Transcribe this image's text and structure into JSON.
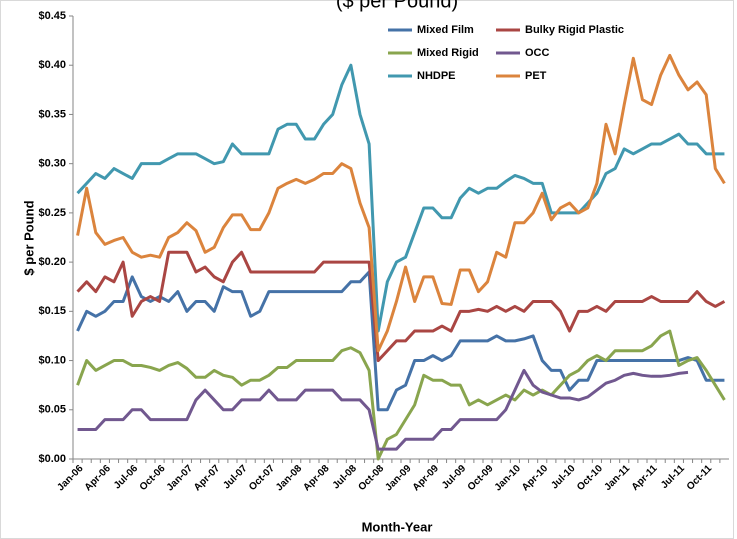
{
  "chart_data": {
    "type": "line",
    "title": "($ per Pound)",
    "y_label": "$ per Pound",
    "x_label": "Month-Year",
    "categories": [
      "Jan-06",
      null,
      null,
      "Apr-06",
      null,
      null,
      "Jul-06",
      null,
      null,
      "Oct-06",
      null,
      null,
      "Jan-07",
      null,
      null,
      "Apr-07",
      null,
      null,
      "Jul-07",
      null,
      null,
      "Oct-07",
      null,
      null,
      "Jan-08",
      null,
      null,
      "Apr-08",
      null,
      null,
      "Jul-08",
      null,
      null,
      "Oct-08",
      null,
      null,
      "Jan-09",
      null,
      null,
      "Apr-09",
      null,
      null,
      "Jul-09",
      null,
      null,
      "Oct-09",
      null,
      null,
      "Jan-10",
      null,
      null,
      "Apr-10",
      null,
      null,
      "Jul-10",
      null,
      null,
      "Oct-10",
      null,
      null,
      "Jan-11",
      null,
      null,
      "Apr-11",
      null,
      null,
      "Jul-11",
      null,
      null,
      "Oct-11",
      null,
      null
    ],
    "series": [
      {
        "name": "Mixed Film",
        "color": "#4572a7",
        "values": [
          0.13,
          0.15,
          0.145,
          0.15,
          0.16,
          0.16,
          0.185,
          0.165,
          0.16,
          0.165,
          0.16,
          0.17,
          0.15,
          0.16,
          0.16,
          0.15,
          0.175,
          0.17,
          0.17,
          0.145,
          0.15,
          0.17,
          0.17,
          0.17,
          0.17,
          0.17,
          0.17,
          0.17,
          0.17,
          0.17,
          0.18,
          0.18,
          0.19,
          0.05,
          0.05,
          0.07,
          0.075,
          0.1,
          0.1,
          0.105,
          0.1,
          0.105,
          0.12,
          0.12,
          0.12,
          0.12,
          0.125,
          0.12,
          0.12,
          0.122,
          0.125,
          0.1,
          0.09,
          0.09,
          0.07,
          0.08,
          0.08,
          0.1,
          0.1,
          0.1,
          0.1,
          0.1,
          0.1,
          0.1,
          0.1,
          0.1,
          0.1,
          0.103,
          0.1,
          0.08,
          0.08,
          0.08
        ]
      },
      {
        "name": "Bulky Rigid Plastic",
        "color": "#aa4643",
        "values": [
          0.17,
          0.18,
          0.17,
          0.185,
          0.18,
          0.2,
          0.145,
          0.16,
          0.165,
          0.16,
          0.21,
          0.21,
          0.21,
          0.19,
          0.195,
          0.185,
          0.18,
          0.2,
          0.21,
          0.19,
          0.19,
          0.19,
          0.19,
          0.19,
          0.19,
          0.19,
          0.19,
          0.2,
          0.2,
          0.2,
          0.2,
          0.2,
          0.2,
          0.1,
          0.11,
          0.12,
          0.12,
          0.13,
          0.13,
          0.13,
          0.135,
          0.13,
          0.15,
          0.15,
          0.152,
          0.15,
          0.155,
          0.15,
          0.155,
          0.15,
          0.16,
          0.16,
          0.16,
          0.15,
          0.13,
          0.15,
          0.15,
          0.155,
          0.15,
          0.16,
          0.16,
          0.16,
          0.16,
          0.165,
          0.16,
          0.16,
          0.16,
          0.16,
          0.17,
          0.16,
          0.155,
          0.16
        ]
      },
      {
        "name": "Mixed Rigid",
        "color": "#89a54e",
        "values": [
          0.075,
          0.1,
          0.09,
          0.095,
          0.1,
          0.1,
          0.095,
          0.095,
          0.093,
          0.09,
          0.095,
          0.098,
          0.092,
          0.083,
          0.083,
          0.09,
          0.085,
          0.083,
          0.075,
          0.08,
          0.08,
          0.085,
          0.093,
          0.093,
          0.1,
          0.1,
          0.1,
          0.1,
          0.1,
          0.11,
          0.113,
          0.108,
          0.09,
          0.0,
          0.02,
          0.025,
          0.04,
          0.055,
          0.085,
          0.08,
          0.08,
          0.075,
          0.075,
          0.055,
          0.06,
          0.055,
          0.06,
          0.065,
          0.06,
          0.07,
          0.065,
          0.07,
          0.065,
          0.075,
          0.085,
          0.09,
          0.1,
          0.105,
          0.1,
          0.11,
          0.11,
          0.11,
          0.11,
          0.115,
          0.125,
          0.13,
          0.095,
          0.1,
          0.103,
          0.09,
          0.075,
          0.06
        ]
      },
      {
        "name": "OCC",
        "color": "#71588f",
        "values": [
          0.03,
          0.03,
          0.03,
          0.04,
          0.04,
          0.04,
          0.05,
          0.05,
          0.04,
          0.04,
          0.04,
          0.04,
          0.04,
          0.06,
          0.07,
          0.06,
          0.05,
          0.05,
          0.06,
          0.06,
          0.06,
          0.07,
          0.06,
          0.06,
          0.06,
          0.07,
          0.07,
          0.07,
          0.07,
          0.06,
          0.06,
          0.06,
          0.05,
          0.01,
          0.01,
          0.01,
          0.02,
          0.02,
          0.02,
          0.02,
          0.03,
          0.03,
          0.04,
          0.04,
          0.04,
          0.04,
          0.04,
          0.05,
          0.07,
          0.09,
          0.075,
          0.068,
          0.065,
          0.062,
          0.062,
          0.06,
          0.063,
          0.07,
          0.077,
          0.08,
          0.085,
          0.087,
          0.085,
          0.084,
          0.084,
          0.085,
          0.087,
          0.088,
          null,
          null,
          null,
          null
        ]
      },
      {
        "name": "NHDPE",
        "color": "#4198af",
        "values": [
          0.27,
          0.28,
          0.29,
          0.285,
          0.295,
          0.29,
          0.285,
          0.3,
          0.3,
          0.3,
          0.305,
          0.31,
          0.31,
          0.31,
          0.305,
          0.3,
          0.302,
          0.32,
          0.31,
          0.31,
          0.31,
          0.31,
          0.335,
          0.34,
          0.34,
          0.325,
          0.325,
          0.34,
          0.35,
          0.38,
          0.4,
          0.35,
          0.32,
          0.13,
          0.18,
          0.2,
          0.205,
          0.23,
          0.255,
          0.255,
          0.245,
          0.245,
          0.265,
          0.275,
          0.27,
          0.275,
          0.275,
          0.282,
          0.288,
          0.285,
          0.28,
          0.28,
          0.25,
          0.25,
          0.25,
          0.25,
          0.26,
          0.27,
          0.29,
          0.295,
          0.315,
          0.31,
          0.315,
          0.32,
          0.32,
          0.325,
          0.33,
          0.32,
          0.32,
          0.31,
          0.31,
          0.31
        ]
      },
      {
        "name": "PET",
        "color": "#db843d",
        "values": [
          0.227,
          0.275,
          0.23,
          0.218,
          0.222,
          0.225,
          0.21,
          0.205,
          0.207,
          0.205,
          0.225,
          0.23,
          0.24,
          0.232,
          0.21,
          0.215,
          0.235,
          0.248,
          0.248,
          0.233,
          0.233,
          0.25,
          0.275,
          0.28,
          0.284,
          0.28,
          0.284,
          0.29,
          0.29,
          0.3,
          0.295,
          0.26,
          0.235,
          0.11,
          0.13,
          0.16,
          0.195,
          0.16,
          0.185,
          0.185,
          0.158,
          0.157,
          0.192,
          0.192,
          0.17,
          0.18,
          0.21,
          0.205,
          0.24,
          0.24,
          0.25,
          0.27,
          0.243,
          0.255,
          0.26,
          0.25,
          0.255,
          0.28,
          0.34,
          0.31,
          0.36,
          0.407,
          0.365,
          0.36,
          0.39,
          0.41,
          0.39,
          0.375,
          0.383,
          0.37,
          0.295,
          0.28
        ]
      }
    ],
    "ylim": [
      0,
      0.45
    ],
    "yticks": [
      {
        "value": 0,
        "label": "$0.00"
      },
      {
        "value": 0.05,
        "label": "$0.05"
      },
      {
        "value": 0.1,
        "label": "$0.10"
      },
      {
        "value": 0.15,
        "label": "$0.15"
      },
      {
        "value": 0.2,
        "label": "$0.20"
      },
      {
        "value": 0.25,
        "label": "$0.25"
      },
      {
        "value": 0.3,
        "label": "$0.30"
      },
      {
        "value": 0.35,
        "label": "$0.35"
      },
      {
        "value": 0.4,
        "label": "$0.40"
      },
      {
        "value": 0.45,
        "label": "$0.45"
      }
    ],
    "grid": false,
    "legend": "top"
  }
}
